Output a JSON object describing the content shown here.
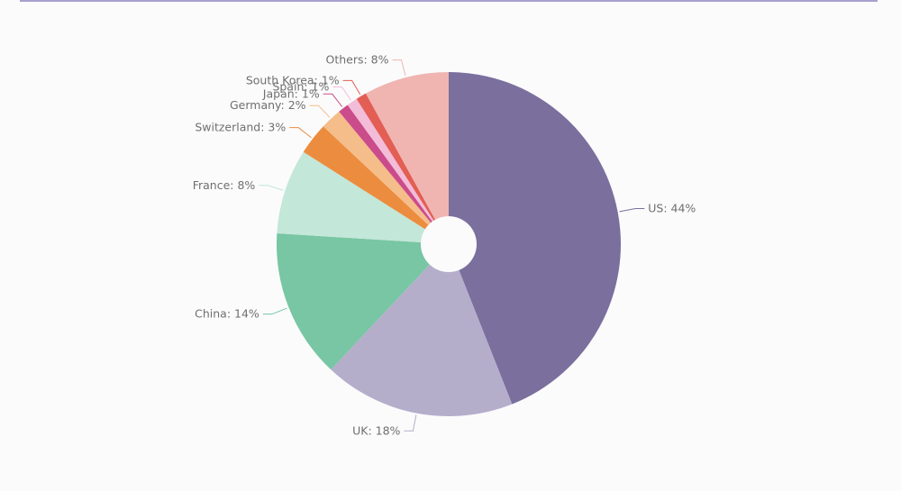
{
  "chart_data": {
    "type": "pie",
    "style": "donut",
    "title": "",
    "categories": [
      "US",
      "UK",
      "China",
      "France",
      "Switzerland",
      "Germany",
      "Japan",
      "Spain",
      "South Korea",
      "Others"
    ],
    "values": [
      44,
      18,
      14,
      8,
      3,
      2,
      1,
      1,
      1,
      8
    ],
    "unit": "%",
    "colors": [
      "#7b6f9e",
      "#b4aecb",
      "#78c6a3",
      "#c3e7d8",
      "#ec8c3e",
      "#f5bd8a",
      "#cb4c8a",
      "#f3bcd9",
      "#e35e54",
      "#f0b5b1"
    ],
    "labels": [
      "US: 44%",
      "UK: 18%",
      "China: 14%",
      "France: 8%",
      "Switzerland: 3%",
      "Germany: 2%",
      "Japan: 1%",
      "Spain: 1%",
      "South Korea: 1%",
      "Others: 8%"
    ],
    "legend": "none",
    "start_angle": "top",
    "direction": "clockwise"
  }
}
